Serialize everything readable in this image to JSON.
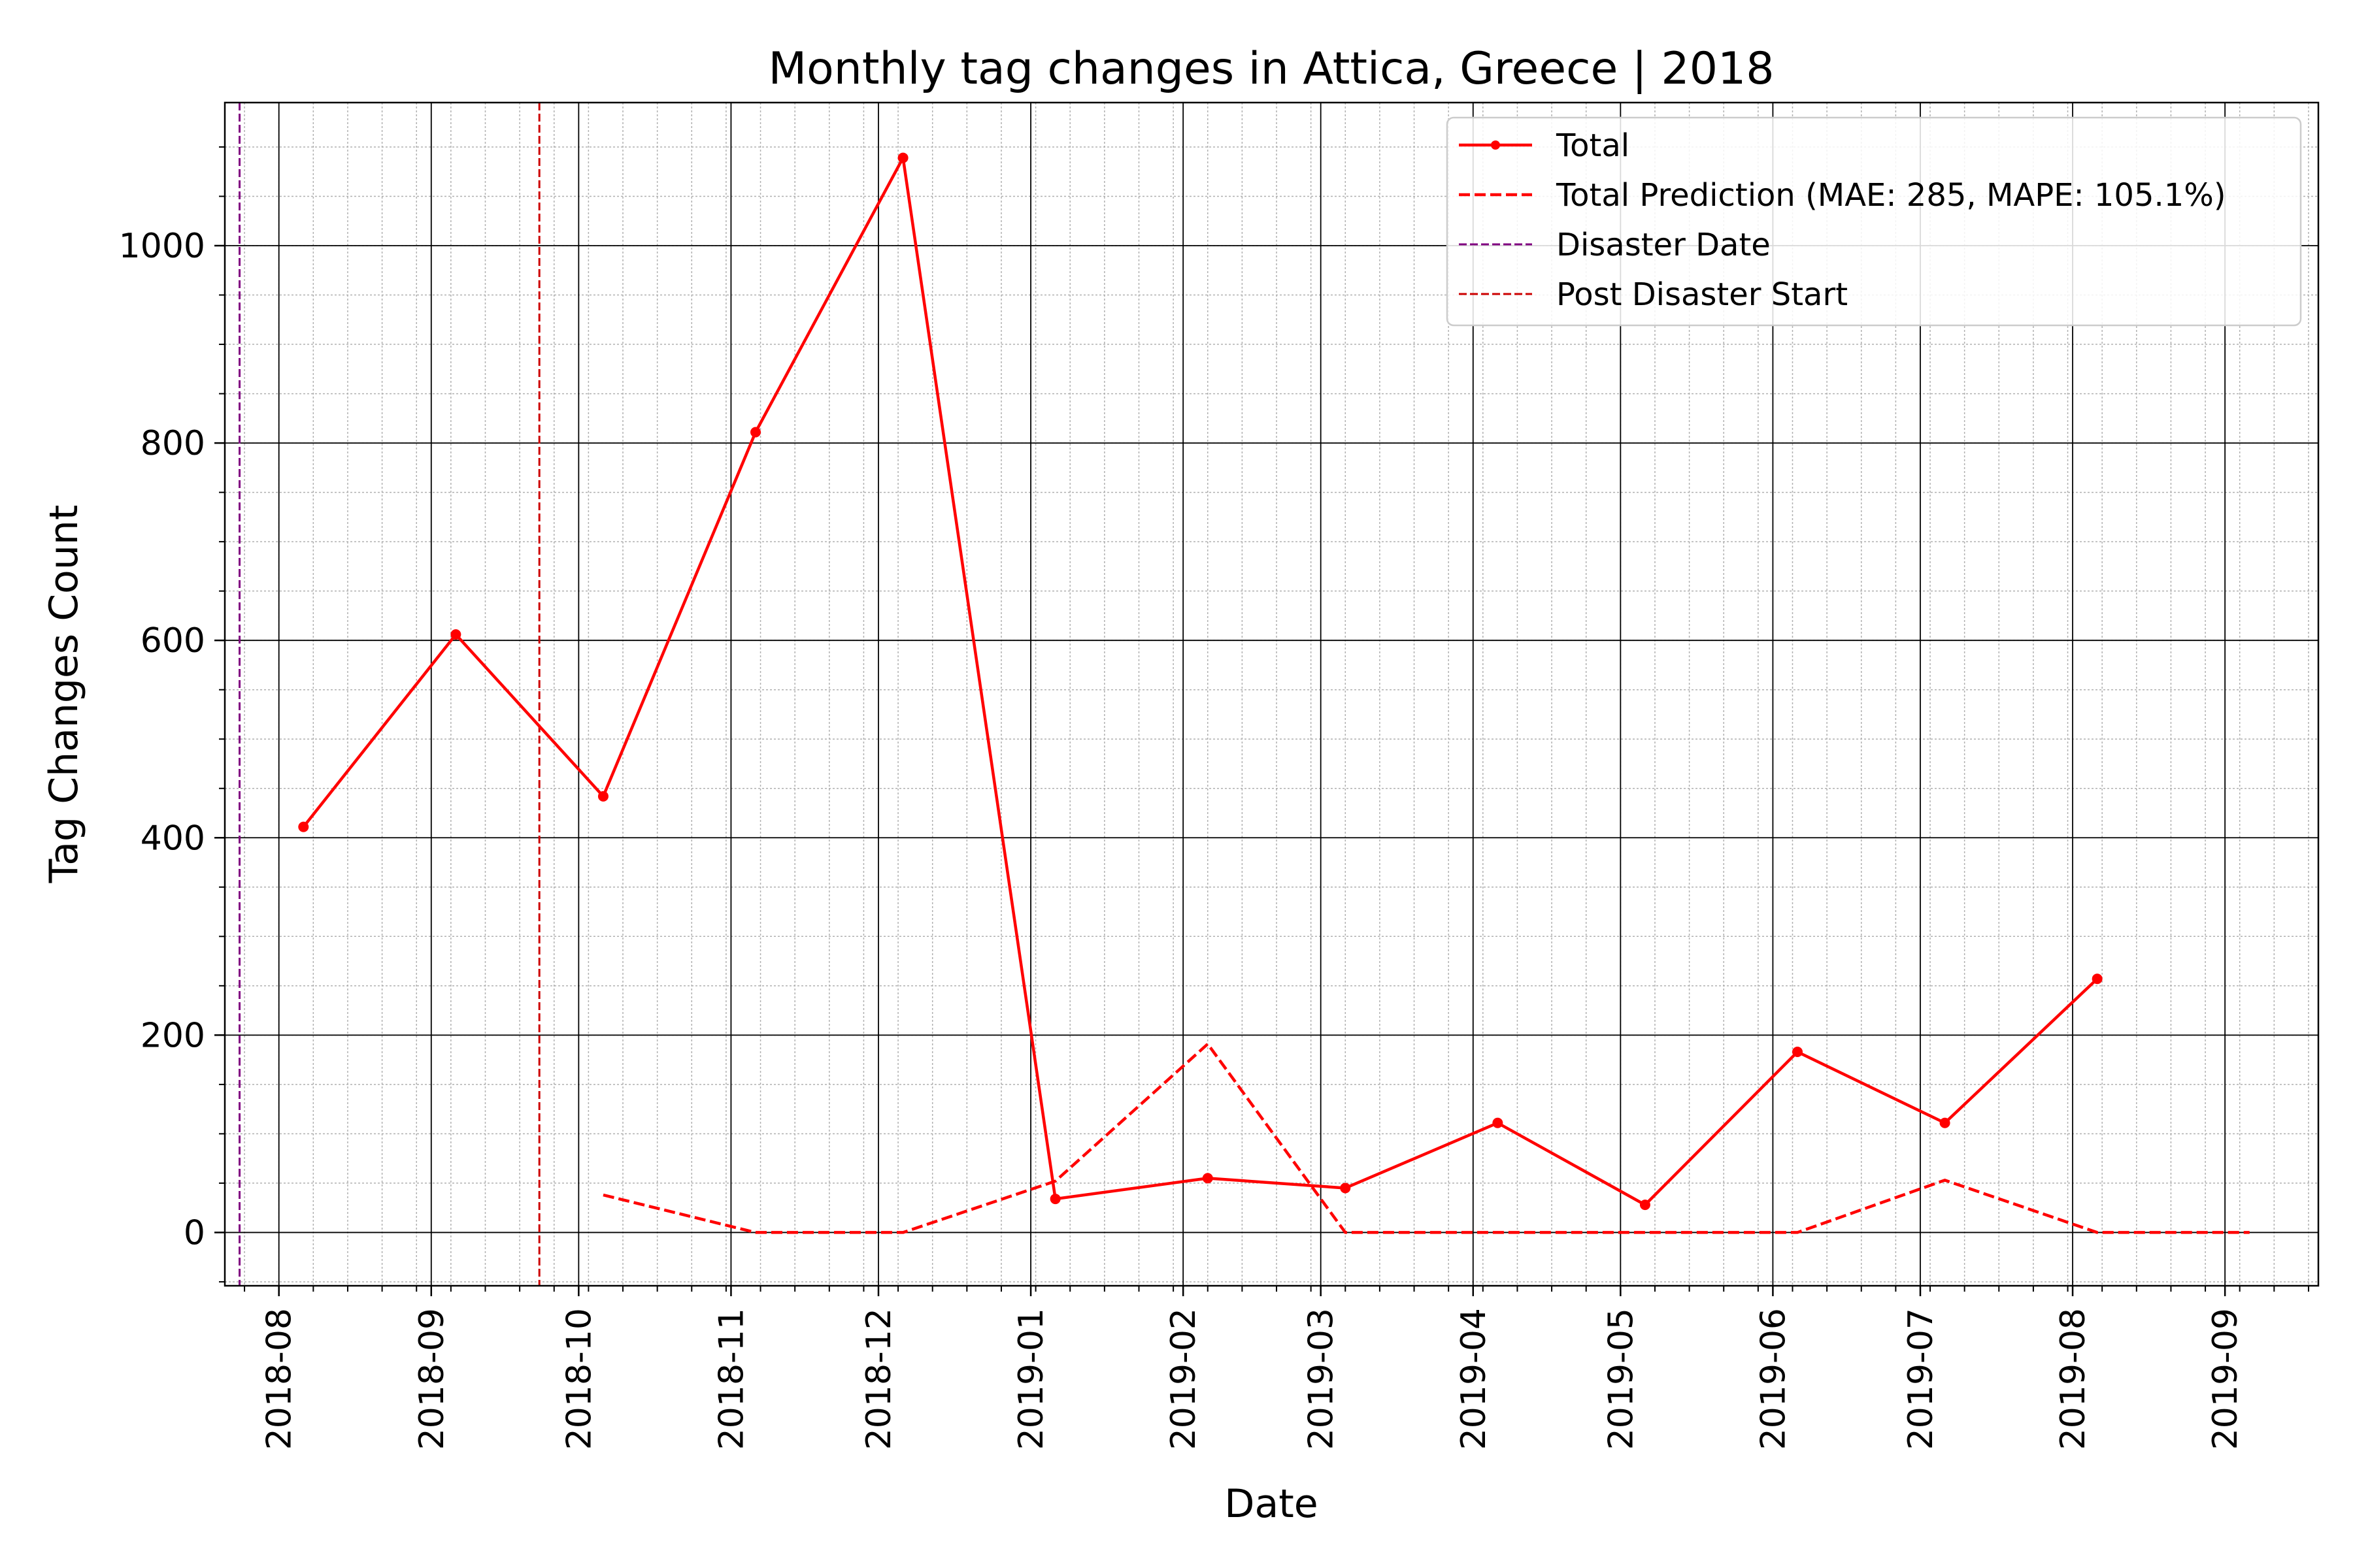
{
  "chart_data": {
    "type": "line",
    "title": "Monthly tag changes in Attica, Greece | 2018",
    "xlabel": "Date",
    "ylabel": "Tag Changes Count",
    "x_axis": {
      "type": "date",
      "range": [
        "2018-07-21",
        "2019-09-20"
      ],
      "ticks": [
        "2018-08-01",
        "2018-09-01",
        "2018-10-01",
        "2018-11-01",
        "2018-12-01",
        "2019-01-01",
        "2019-02-01",
        "2019-03-01",
        "2019-04-01",
        "2019-05-01",
        "2019-06-01",
        "2019-07-01",
        "2019-08-01",
        "2019-09-01"
      ],
      "tick_labels": [
        "2018-08",
        "2018-09",
        "2018-10",
        "2018-11",
        "2018-12",
        "2019-01",
        "2019-02",
        "2019-03",
        "2019-04",
        "2019-05",
        "2019-06",
        "2019-07",
        "2019-08",
        "2019-09"
      ],
      "tick_rotation": 90
    },
    "y_axis": {
      "range": [
        -54,
        1145
      ],
      "ticks": [
        0,
        200,
        400,
        600,
        800,
        1000
      ],
      "tick_labels": [
        "0",
        "200",
        "400",
        "600",
        "800",
        "1000"
      ]
    },
    "grid": {
      "major": true,
      "minor": true
    },
    "legend_position": "top-right",
    "series": [
      {
        "name": "Total",
        "style": "solid",
        "marker": "dot",
        "color": "#ff0000",
        "x": [
          "2018-08-06",
          "2018-09-06",
          "2018-10-06",
          "2018-11-06",
          "2018-12-06",
          "2019-01-06",
          "2019-02-06",
          "2019-03-06",
          "2019-04-06",
          "2019-05-06",
          "2019-06-06",
          "2019-07-06",
          "2019-08-06"
        ],
        "y": [
          411,
          606,
          442,
          811,
          1089,
          34,
          55,
          45,
          111,
          28,
          183,
          111,
          257
        ]
      },
      {
        "name": "Total Prediction (MAE: 285, MAPE: 105.1%)",
        "style": "dashed",
        "marker": "none",
        "color": "#ff0000",
        "x": [
          "2018-10-06",
          "2018-11-06",
          "2018-12-06",
          "2019-01-06",
          "2019-02-06",
          "2019-03-06",
          "2019-04-06",
          "2019-05-06",
          "2019-06-06",
          "2019-07-06",
          "2019-08-06",
          "2019-09-06"
        ],
        "y": [
          38,
          0,
          0,
          52,
          191,
          0,
          0,
          0,
          0,
          53,
          0,
          0
        ]
      }
    ],
    "vlines": [
      {
        "name": "Disaster Date",
        "x": "2018-07-24",
        "color": "#800080",
        "style": "dashed"
      },
      {
        "name": "Post Disaster Start",
        "x": "2018-09-23",
        "color": "#cc0000",
        "style": "dashed"
      }
    ]
  }
}
